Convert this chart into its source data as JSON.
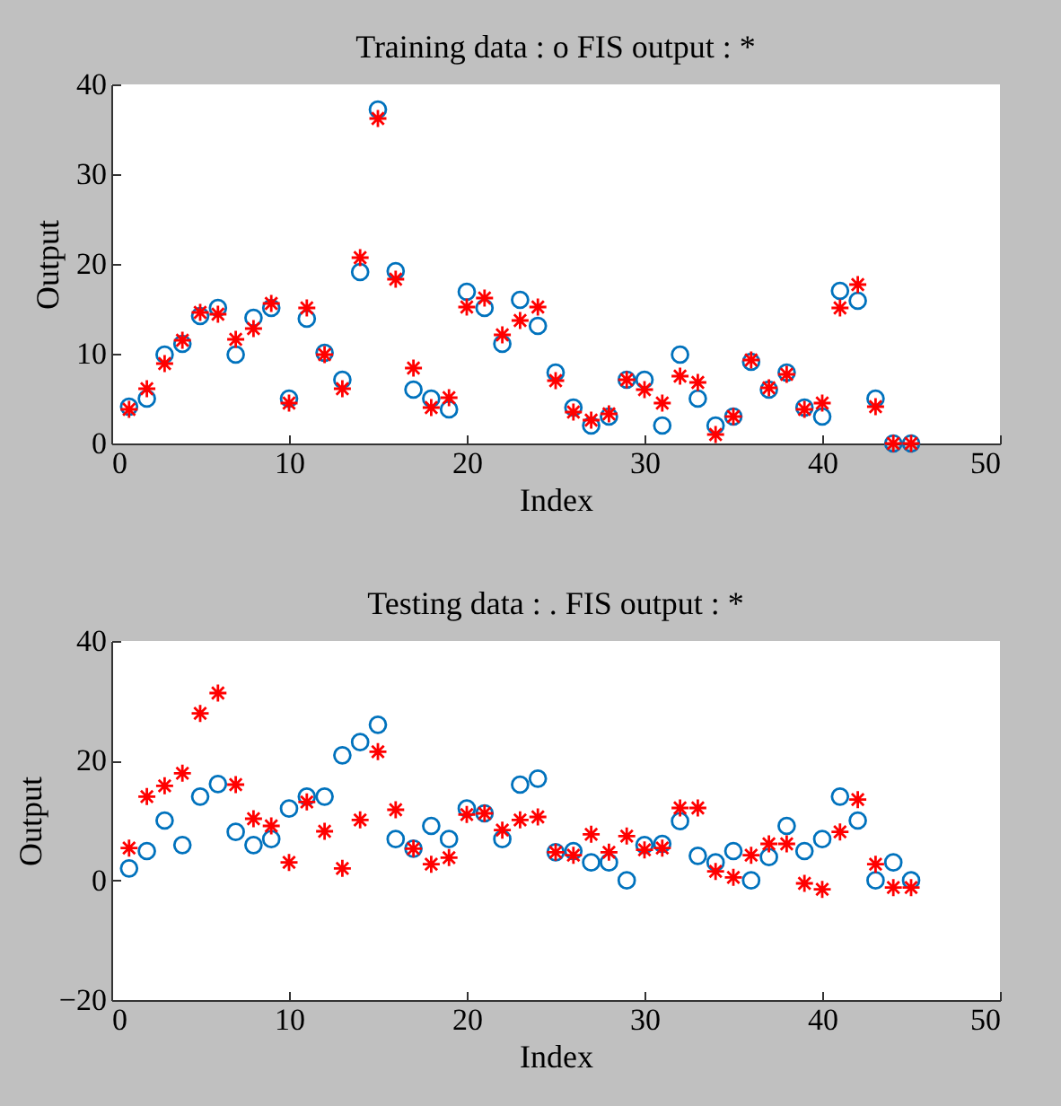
{
  "chart_data": [
    {
      "type": "scatter",
      "title": "Training data : o FIS output : *",
      "xlabel": "Index",
      "ylabel": "Output",
      "x": [
        1,
        2,
        3,
        4,
        5,
        6,
        7,
        8,
        9,
        10,
        11,
        12,
        13,
        14,
        15,
        16,
        17,
        18,
        19,
        20,
        21,
        22,
        23,
        24,
        25,
        26,
        27,
        28,
        29,
        30,
        31,
        32,
        33,
        34,
        35,
        36,
        37,
        38,
        39,
        40,
        41,
        42,
        43,
        44,
        45
      ],
      "series": [
        {
          "color": "#0072bd",
          "marker": "circle",
          "values": [
            4.1,
            5.0,
            9.9,
            11.1,
            14.2,
            15.1,
            9.9,
            14.0,
            15.1,
            5.0,
            13.9,
            10.1,
            7.1,
            19.1,
            37.2,
            19.2,
            6.0,
            5.0,
            3.8,
            16.9,
            15.1,
            11.1,
            16.0,
            13.1,
            7.9,
            4.0,
            2.0,
            3.0,
            7.1,
            7.1,
            2.0,
            9.9,
            5.0,
            2.0,
            3.0,
            9.1,
            6.0,
            7.9,
            4.0,
            3.0,
            17.0,
            15.9,
            5.0,
            0,
            0
          ]
        },
        {
          "color": "#ff0000",
          "marker": "cross",
          "values": [
            3.8,
            6.1,
            8.9,
            11.5,
            14.6,
            14.4,
            11.6,
            12.8,
            15.6,
            4.5,
            15.1,
            9.9,
            6.1,
            20.7,
            36.2,
            18.3,
            8.4,
            4.0,
            5.1,
            15.2,
            16.2,
            12.1,
            13.7,
            15.2,
            7.0,
            3.5,
            2.6,
            3.3,
            7.1,
            6.0,
            4.5,
            7.5,
            6.8,
            1.0,
            3.0,
            9.3,
            6.2,
            7.7,
            3.8,
            4.5,
            15.1,
            17.7,
            4.1,
            0,
            0
          ]
        }
      ],
      "xlim": [
        0,
        50
      ],
      "xticks": [
        0,
        10,
        20,
        30,
        40,
        50
      ],
      "ylim": [
        0,
        40
      ],
      "yticks": [
        0,
        10,
        20,
        30,
        40
      ]
    },
    {
      "type": "scatter",
      "title": "Testing data : . FIS output : *",
      "xlabel": "Index",
      "ylabel": "Output",
      "x": [
        1,
        2,
        3,
        4,
        5,
        6,
        7,
        8,
        9,
        10,
        11,
        12,
        13,
        14,
        15,
        16,
        17,
        18,
        19,
        20,
        21,
        22,
        23,
        24,
        25,
        26,
        27,
        28,
        29,
        30,
        31,
        32,
        33,
        34,
        35,
        36,
        37,
        38,
        39,
        40,
        41,
        42,
        43,
        44,
        45
      ],
      "series": [
        {
          "color": "#0072bd",
          "marker": "circle",
          "values": [
            2.0,
            4.9,
            10.0,
            5.9,
            14.0,
            16.1,
            8.1,
            5.9,
            6.9,
            12.0,
            14.0,
            14.0,
            20.9,
            23.1,
            26.0,
            6.9,
            5.3,
            9.1,
            6.9,
            12.0,
            11.2,
            6.9,
            16.0,
            17.0,
            4.7,
            4.9,
            3.0,
            3.0,
            0,
            5.9,
            6.1,
            9.9,
            4.1,
            3.0,
            4.9,
            0,
            3.9,
            9.1,
            4.9,
            6.9,
            14.0,
            10.0,
            0,
            3.0,
            0
          ]
        },
        {
          "color": "#ff0000",
          "marker": "cross",
          "values": [
            5.4,
            14.0,
            15.8,
            17.9,
            27.9,
            31.3,
            16.0,
            10.3,
            9.1,
            3.0,
            13.1,
            8.2,
            2.0,
            10.1,
            21.5,
            11.8,
            5.3,
            2.7,
            3.8,
            11.0,
            11.2,
            8.4,
            10.1,
            10.6,
            4.7,
            4.2,
            7.7,
            4.7,
            7.4,
            5.1,
            5.4,
            12.1,
            12.1,
            1.5,
            0.5,
            4.2,
            6.1,
            6.1,
            -0.5,
            -1.5,
            8.1,
            13.5,
            2.7,
            -1.2,
            -1.2
          ]
        }
      ],
      "xlim": [
        0,
        50
      ],
      "xticks": [
        0,
        10,
        20,
        30,
        40,
        50
      ],
      "ylim": [
        -20,
        40
      ],
      "yticks": [
        -20,
        0,
        20,
        40
      ]
    }
  ]
}
